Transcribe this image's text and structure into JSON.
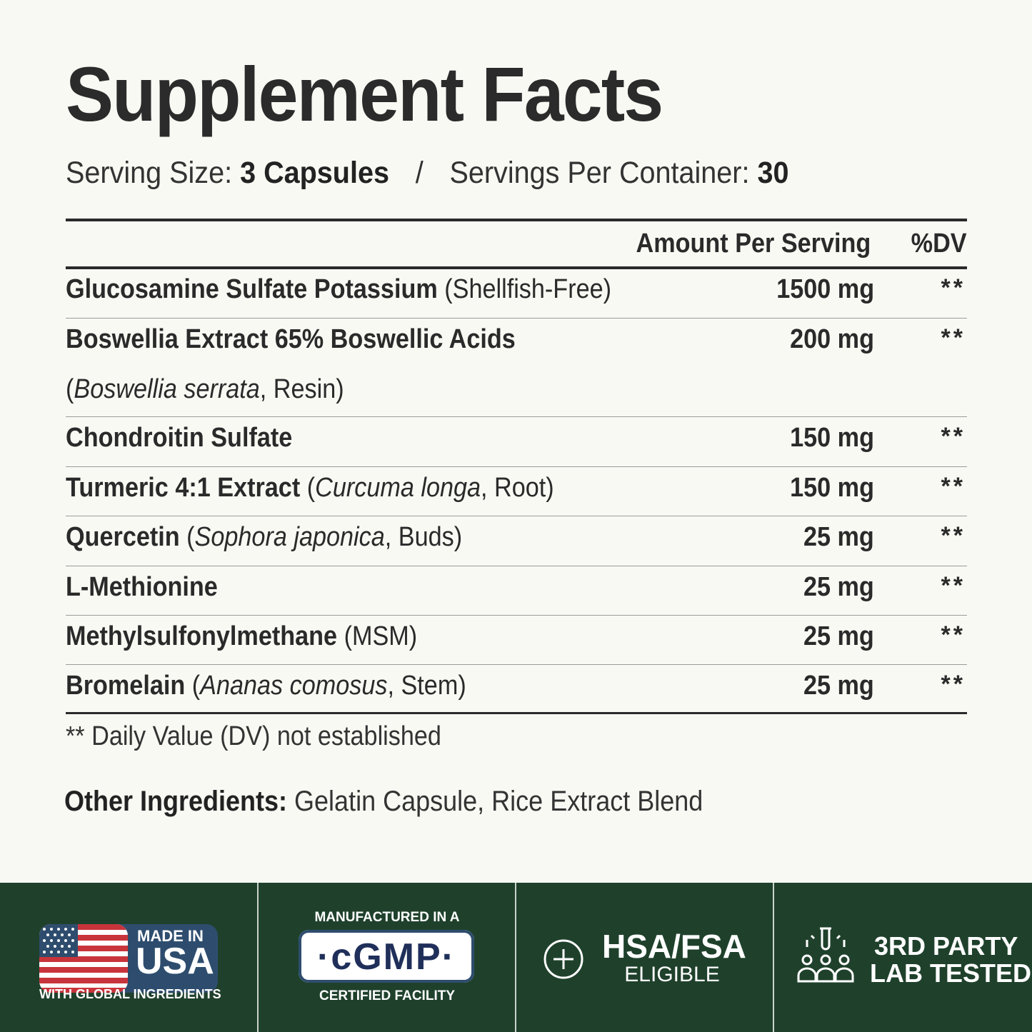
{
  "title": "Supplement Facts",
  "serving": {
    "size_label": "Serving Size:",
    "size_value": "3 Capsules",
    "separator": "/",
    "per_container_label": "Servings Per Container:",
    "per_container_value": "30"
  },
  "table": {
    "header_amount": "Amount Per Serving",
    "header_dv": "%DV",
    "rows": [
      {
        "name": "Glucosamine Sulfate Potassium",
        "detail_open": " (",
        "detail_italic": "",
        "detail_rest": "Shellfish-Free)",
        "amount": "1500 mg",
        "dv": "**"
      },
      {
        "name": "Boswellia Extract 65% Boswellic Acids",
        "line2_open": "(",
        "line2_italic": "Boswellia serrata",
        "line2_rest": ", Resin)",
        "amount": "200 mg",
        "dv": "**"
      },
      {
        "name": "Chondroitin Sulfate",
        "amount": "150 mg",
        "dv": "**"
      },
      {
        "name": "Turmeric 4:1 Extract",
        "detail_open": " (",
        "detail_italic": "Curcuma longa",
        "detail_rest": ", Root)",
        "amount": "150 mg",
        "dv": "**"
      },
      {
        "name": "Quercetin",
        "detail_open": " (",
        "detail_italic": "Sophora japonica",
        "detail_rest": ", Buds)",
        "amount": "25 mg",
        "dv": "**"
      },
      {
        "name": "L-Methionine",
        "amount": "25 mg",
        "dv": "**"
      },
      {
        "name": "Methylsulfonylmethane",
        "detail_open": " (",
        "detail_italic": "",
        "detail_rest": "MSM)",
        "amount": "25 mg",
        "dv": "**"
      },
      {
        "name": "Bromelain",
        "detail_open": " (",
        "detail_italic": "Ananas comosus",
        "detail_rest": ", Stem)",
        "amount": "25 mg",
        "dv": "**"
      }
    ]
  },
  "footnote": "** Daily Value (DV) not established",
  "other_ingredients": {
    "label": "Other Ingredients:",
    "value": " Gelatin Capsule, Rice Extract Blend"
  },
  "badges": {
    "made_in_usa": {
      "line1": "MADE IN",
      "line2": "USA",
      "sub": "WITH GLOBAL INGREDIENTS",
      "icon": "us-flag-icon"
    },
    "cgmp": {
      "top": "MANUFACTURED IN A",
      "badge": "·cGMP·",
      "bottom": "CERTIFIED FACILITY"
    },
    "hsa": {
      "title": "HSA/FSA",
      "sub": "ELIGIBLE",
      "icon": "plus-circle-icon"
    },
    "lab": {
      "line1": "3RD PARTY",
      "line2": "LAB TESTED",
      "icon": "lab-test-tube-people-icon"
    }
  },
  "colors": {
    "background": "#f9f9f4",
    "band": "#1f412c",
    "text": "#2a2a2a",
    "flag_red": "#c8343b",
    "flag_blue": "#2e4d6e"
  }
}
